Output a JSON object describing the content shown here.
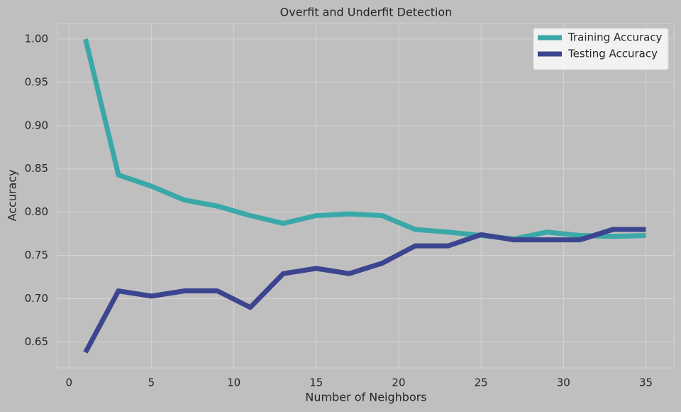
{
  "chart_data": {
    "type": "line",
    "title": "Overfit and Underfit Detection",
    "xlabel": "Number of Neighbors",
    "ylabel": "Accuracy",
    "x": [
      1,
      3,
      5,
      7,
      9,
      11,
      13,
      15,
      17,
      19,
      21,
      23,
      25,
      27,
      29,
      31,
      33,
      35
    ],
    "series": [
      {
        "name": "Training Accuracy",
        "color": "#3aa8a8",
        "values": [
          1.0,
          0.843,
          0.83,
          0.814,
          0.807,
          0.796,
          0.787,
          0.796,
          0.798,
          0.796,
          0.78,
          0.777,
          0.773,
          0.769,
          0.777,
          0.773,
          0.772,
          0.773
        ]
      },
      {
        "name": "Testing Accuracy",
        "color": "#3d4590",
        "values": [
          0.638,
          0.709,
          0.703,
          0.709,
          0.709,
          0.69,
          0.729,
          0.735,
          0.729,
          0.741,
          0.761,
          0.761,
          0.774,
          0.768,
          0.768,
          0.768,
          0.78,
          0.78
        ]
      }
    ],
    "xlim": [
      -0.7,
      36.7
    ],
    "xticks": [
      0,
      5,
      10,
      15,
      20,
      25,
      30,
      35
    ],
    "ylim": [
      0.62,
      1.018
    ],
    "yticks": [
      {
        "value": 0.65,
        "label": "0.65"
      },
      {
        "value": 0.7,
        "label": "0.70"
      },
      {
        "value": 0.75,
        "label": "0.75"
      },
      {
        "value": 0.8,
        "label": "0.80"
      },
      {
        "value": 0.85,
        "label": "0.85"
      },
      {
        "value": 0.9,
        "label": "0.90"
      },
      {
        "value": 0.95,
        "label": "0.95"
      },
      {
        "value": 1.0,
        "label": "1.00"
      }
    ],
    "grid": true,
    "legend": "upper right"
  }
}
